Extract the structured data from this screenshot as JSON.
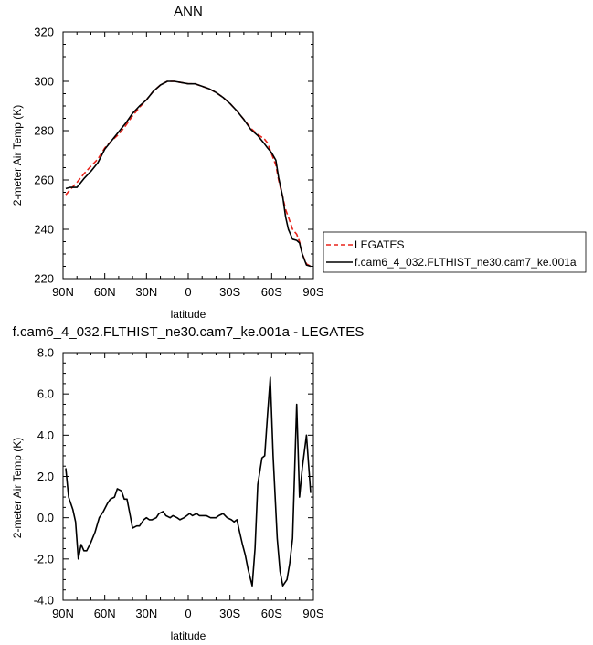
{
  "chart_data": [
    {
      "type": "line",
      "title": "ANN",
      "xlabel": "latitude",
      "ylabel": "2-meter Air Temp (K)",
      "xlim": [
        -90,
        90
      ],
      "ylim": [
        220,
        320
      ],
      "x_ticks": [
        {
          "value": -90,
          "label": "90N"
        },
        {
          "value": -60,
          "label": "60N"
        },
        {
          "value": -30,
          "label": "30N"
        },
        {
          "value": 0,
          "label": "0"
        },
        {
          "value": 30,
          "label": "30S"
        },
        {
          "value": 60,
          "label": "60S"
        },
        {
          "value": 90,
          "label": "90S"
        }
      ],
      "y_ticks": [
        {
          "value": 220,
          "label": "220"
        },
        {
          "value": 240,
          "label": "240"
        },
        {
          "value": 260,
          "label": "260"
        },
        {
          "value": 280,
          "label": "280"
        },
        {
          "value": 300,
          "label": "300"
        },
        {
          "value": 320,
          "label": "320"
        }
      ],
      "grid": false,
      "legend_placement": "outside-right",
      "series": [
        {
          "name": "LEGATES",
          "color": "#e8231a",
          "dash": "dashed",
          "x": [
            -88,
            -85,
            -80,
            -75,
            -70,
            -65,
            -60,
            -55,
            -50,
            -45,
            -40,
            -35,
            -30,
            -25,
            -20,
            -15,
            -10,
            -5,
            0,
            5,
            10,
            15,
            20,
            25,
            30,
            35,
            40,
            45,
            50,
            55,
            57,
            60,
            63,
            65,
            68,
            70,
            72,
            75,
            78,
            80,
            82,
            85,
            88
          ],
          "y": [
            254.0,
            256.0,
            259.0,
            262.5,
            265.5,
            268.5,
            273.0,
            276.0,
            278.5,
            282.0,
            286.0,
            289.5,
            292.5,
            296.0,
            298.5,
            300.0,
            300.0,
            299.5,
            299.0,
            299.0,
            298.0,
            297.0,
            295.5,
            293.5,
            291.0,
            288.0,
            284.5,
            281.0,
            278.5,
            276.5,
            275.0,
            270.5,
            266.0,
            260.0,
            253.0,
            248.0,
            245.0,
            240.0,
            238.0,
            235.0,
            230.0,
            226.0,
            225.0
          ]
        },
        {
          "name": "f.cam6_4_032.FLTHIST_ne30.cam7_ke.001a",
          "color": "#000000",
          "dash": "solid",
          "x": [
            -88,
            -85,
            -80,
            -75,
            -70,
            -65,
            -60,
            -55,
            -50,
            -45,
            -40,
            -35,
            -30,
            -25,
            -20,
            -15,
            -10,
            -5,
            0,
            5,
            10,
            15,
            20,
            25,
            30,
            35,
            40,
            45,
            50,
            55,
            57,
            60,
            63,
            65,
            68,
            70,
            72,
            75,
            78,
            80,
            82,
            85,
            88
          ],
          "y": [
            256.5,
            257.0,
            257.0,
            260.5,
            263.5,
            267.0,
            272.5,
            276.0,
            279.5,
            283.0,
            287.0,
            290.0,
            292.5,
            296.0,
            298.5,
            300.0,
            300.0,
            299.5,
            299.0,
            299.0,
            298.0,
            297.0,
            295.5,
            293.5,
            291.0,
            288.0,
            284.5,
            280.5,
            278.0,
            274.5,
            273.0,
            271.0,
            268.0,
            261.0,
            253.0,
            245.0,
            240.0,
            236.0,
            235.5,
            234.5,
            230.0,
            225.5,
            225.0
          ]
        }
      ]
    },
    {
      "type": "line",
      "title": "f.cam6_4_032.FLTHIST_ne30.cam7_ke.001a - LEGATES",
      "xlabel": "latitude",
      "ylabel": "2-meter Air Temp (K)",
      "xlim": [
        -90,
        90
      ],
      "ylim": [
        -4.0,
        8.0
      ],
      "x_ticks": [
        {
          "value": -90,
          "label": "90N"
        },
        {
          "value": -60,
          "label": "60N"
        },
        {
          "value": -30,
          "label": "30N"
        },
        {
          "value": 0,
          "label": "0"
        },
        {
          "value": 30,
          "label": "30S"
        },
        {
          "value": 60,
          "label": "60S"
        },
        {
          "value": 90,
          "label": "90S"
        }
      ],
      "y_ticks": [
        {
          "value": -4.0,
          "label": "-4.0"
        },
        {
          "value": -2.0,
          "label": "-2.0"
        },
        {
          "value": 0.0,
          "label": "0.0"
        },
        {
          "value": 2.0,
          "label": "2.0"
        },
        {
          "value": 4.0,
          "label": "4.0"
        },
        {
          "value": 6.0,
          "label": "6.0"
        },
        {
          "value": 8.0,
          "label": "8.0"
        }
      ],
      "grid": false,
      "series": [
        {
          "color": "#000000",
          "dash": "solid",
          "x": [
            -88,
            -86,
            -83,
            -81,
            -79,
            -77,
            -75,
            -73,
            -70,
            -67,
            -64,
            -61,
            -58,
            -56,
            -53,
            -51,
            -48,
            -46,
            -44,
            -42,
            -40,
            -37,
            -35,
            -32,
            -30,
            -28,
            -26,
            -23,
            -21,
            -18,
            -16,
            -13,
            -11,
            -8,
            -6,
            -3,
            -1,
            1,
            3,
            6,
            8,
            11,
            13,
            16,
            18,
            20,
            22,
            25,
            28,
            31,
            33,
            35,
            37,
            39,
            41,
            43,
            46,
            48,
            50,
            53,
            55,
            57,
            59,
            61,
            64,
            66,
            68,
            71,
            73,
            75,
            78,
            80,
            82,
            85,
            88
          ],
          "y": [
            2.4,
            1.0,
            0.4,
            -0.2,
            -2.0,
            -1.3,
            -1.6,
            -1.6,
            -1.2,
            -0.7,
            0.0,
            0.3,
            0.7,
            0.9,
            1.0,
            1.4,
            1.3,
            0.9,
            0.9,
            0.2,
            -0.5,
            -0.4,
            -0.4,
            -0.1,
            0.0,
            -0.1,
            -0.1,
            0.0,
            0.2,
            0.3,
            0.1,
            0.0,
            0.1,
            0.0,
            -0.1,
            0.0,
            0.1,
            0.2,
            0.1,
            0.2,
            0.1,
            0.1,
            0.1,
            0.0,
            0.0,
            0.0,
            0.1,
            0.2,
            0.0,
            -0.1,
            -0.2,
            -0.1,
            -0.7,
            -1.3,
            -1.8,
            -2.5,
            -3.3,
            -1.5,
            1.6,
            2.9,
            3.0,
            5.0,
            6.8,
            3.0,
            -1.0,
            -2.6,
            -3.3,
            -3.0,
            -2.2,
            -1.0,
            5.5,
            1.0,
            2.4,
            4.0,
            1.2
          ]
        }
      ]
    }
  ]
}
